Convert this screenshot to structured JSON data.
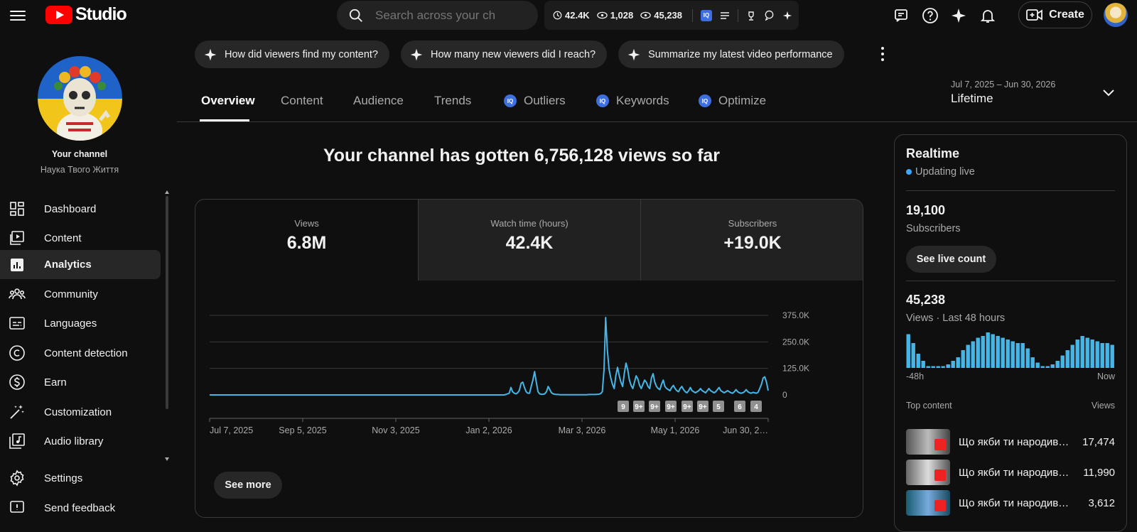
{
  "header": {
    "app_name": "Studio",
    "search_placeholder": "Search across your ch",
    "stats": {
      "watch_hours": "42.4K",
      "views_a": "1,028",
      "views_b": "45,238"
    },
    "create_label": "Create"
  },
  "sidebar": {
    "channel_heading": "Your channel",
    "channel_name": "Наука Твого Життя",
    "items": [
      {
        "label": "Dashboard",
        "icon": "dashboard-icon"
      },
      {
        "label": "Content",
        "icon": "content-icon"
      },
      {
        "label": "Analytics",
        "icon": "analytics-icon",
        "active": true
      },
      {
        "label": "Community",
        "icon": "community-icon"
      },
      {
        "label": "Languages",
        "icon": "languages-icon"
      },
      {
        "label": "Content detection",
        "icon": "copyright-icon"
      },
      {
        "label": "Earn",
        "icon": "earn-icon"
      },
      {
        "label": "Customization",
        "icon": "magic-wand-icon"
      },
      {
        "label": "Audio library",
        "icon": "audio-library-icon"
      }
    ],
    "settings_label": "Settings",
    "feedback_label": "Send feedback"
  },
  "chips": [
    "How did viewers find my content?",
    "How many new viewers did I reach?",
    "Summarize my latest video performance"
  ],
  "tabs": [
    "Overview",
    "Content",
    "Audience",
    "Trends",
    "Outliers",
    "Keywords",
    "Optimize"
  ],
  "date_range": {
    "range": "Jul 7, 2025 – Jun 30, 2026",
    "label": "Lifetime"
  },
  "headline": "Your channel has gotten 6,756,128 views so far",
  "metrics": [
    {
      "label": "Views",
      "value": "6.8M"
    },
    {
      "label": "Watch time (hours)",
      "value": "42.4K"
    },
    {
      "label": "Subscribers",
      "value": "+19.0K"
    }
  ],
  "chart_data": {
    "type": "line",
    "series": [
      {
        "values": [
          0,
          0,
          0,
          0,
          0,
          0,
          0,
          0,
          0,
          0,
          0,
          0,
          0,
          0,
          0,
          0,
          0,
          0,
          0,
          0,
          0,
          0,
          0,
          0,
          0,
          0,
          0,
          0,
          0,
          0,
          0,
          0,
          0,
          0,
          0,
          0,
          0,
          0,
          0,
          0,
          0,
          0,
          0,
          0,
          0,
          0,
          0,
          0,
          0,
          0,
          0,
          0,
          0,
          0,
          0,
          0,
          0,
          0,
          0,
          0,
          0,
          0,
          0,
          0,
          0,
          0,
          0,
          0,
          0,
          0,
          0,
          0,
          0,
          0,
          0,
          0,
          0,
          0,
          0,
          0,
          0,
          0,
          0,
          0,
          0,
          0,
          0,
          0,
          0,
          0,
          0,
          0,
          0,
          0,
          0,
          0,
          0,
          0,
          0,
          0,
          0,
          0,
          0,
          0,
          0,
          0,
          0,
          0,
          0,
          0,
          0,
          0,
          0,
          0,
          0,
          0,
          0,
          0,
          0,
          0,
          0,
          0,
          0,
          0,
          0,
          0,
          0,
          0,
          0,
          0,
          0,
          0,
          0,
          0,
          0,
          0,
          0,
          0,
          0,
          0,
          0,
          0,
          0,
          0,
          0,
          0,
          0,
          0,
          0,
          0,
          0,
          0,
          0,
          0,
          0,
          0,
          0,
          0,
          0,
          0,
          0,
          0,
          0,
          0,
          0,
          0,
          0,
          0,
          0,
          0,
          0,
          0,
          0,
          0,
          0,
          2000,
          5000,
          8000,
          35000,
          15000,
          8000,
          5000,
          10000,
          22000,
          55000,
          60000,
          35000,
          15000,
          8000,
          8000,
          40000,
          70000,
          110000,
          60000,
          15000,
          5000,
          3000,
          3000,
          5000,
          15000,
          40000,
          25000,
          10000,
          5000,
          3000,
          2000,
          2000,
          1000,
          1000,
          1000,
          1000,
          1000,
          1000,
          1000,
          1000,
          1000,
          1000,
          1000,
          1000,
          1000,
          1000,
          1000,
          1000,
          1000,
          2000,
          2000,
          2000,
          2000,
          2000,
          3000,
          3000,
          6000,
          15000,
          120000,
          365000,
          210000,
          120000,
          80000,
          50000,
          30000,
          90000,
          130000,
          90000,
          60000,
          40000,
          100000,
          150000,
          120000,
          70000,
          45000,
          30000,
          60000,
          90000,
          75000,
          45000,
          30000,
          50000,
          70000,
          60000,
          40000,
          30000,
          80000,
          100000,
          60000,
          40000,
          30000,
          25000,
          50000,
          70000,
          40000,
          30000,
          25000,
          20000,
          35000,
          45000,
          30000,
          20000,
          15000,
          30000,
          40000,
          25000,
          15000,
          10000,
          20000,
          35000,
          20000,
          15000,
          10000,
          15000,
          20000,
          30000,
          20000,
          15000,
          10000,
          20000,
          30000,
          20000,
          15000,
          10000,
          15000,
          25000,
          35000,
          20000,
          15000,
          10000,
          15000,
          20000,
          15000,
          10000,
          8000,
          15000,
          25000,
          15000,
          10000,
          8000,
          10000,
          15000,
          25000,
          15000,
          10000,
          8000,
          12000,
          10000,
          8000,
          12000,
          30000,
          50000,
          80000,
          85000,
          60000,
          20000
        ]
      }
    ],
    "x_tick_labels": [
      "Jul 7, 2025",
      "Sep 5, 2025",
      "Nov 3, 2025",
      "Jan 2, 2026",
      "Mar 3, 2026",
      "May 1, 2026",
      "Jun 30, 2…"
    ],
    "y_tick_labels": [
      "375.0K",
      "250.0K",
      "125.0K",
      "0"
    ],
    "ylim": [
      0,
      375000
    ],
    "grid": true,
    "markers": [
      "9",
      "9+",
      "9+",
      "9+",
      "9+",
      "9+",
      "5",
      "6",
      "4"
    ],
    "see_more_label": "See more"
  },
  "realtime": {
    "title": "Realtime",
    "status": "Updating live",
    "subscribers_value": "19,100",
    "subscribers_label": "Subscribers",
    "live_count_button": "See live count",
    "views_value": "45,238",
    "views_label": "Views · Last 48 hours",
    "bars": [
      0.95,
      0.7,
      0.4,
      0.2,
      0.05,
      0.05,
      0.05,
      0.05,
      0.1,
      0.2,
      0.3,
      0.5,
      0.65,
      0.75,
      0.85,
      0.9,
      1.0,
      0.95,
      0.9,
      0.85,
      0.8,
      0.75,
      0.7,
      0.7,
      0.55,
      0.3,
      0.15,
      0.05,
      0.05,
      0.1,
      0.2,
      0.35,
      0.5,
      0.65,
      0.8,
      0.9,
      0.85,
      0.8,
      0.75,
      0.7,
      0.7,
      0.65
    ],
    "bar_left_label": "-48h",
    "bar_right_label": "Now",
    "top_content_label": "Top content",
    "top_content_views_label": "Views",
    "top_content": [
      {
        "title": "Що якби ти народив…",
        "views": "17,474"
      },
      {
        "title": "Що якби ти народив…",
        "views": "11,990"
      },
      {
        "title": "Що якби ти народивс…",
        "views": "3,612"
      }
    ]
  },
  "colors": {
    "accent": "#3ea6ff",
    "chart_line": "#45b6e5",
    "background": "#0f0f0f"
  }
}
